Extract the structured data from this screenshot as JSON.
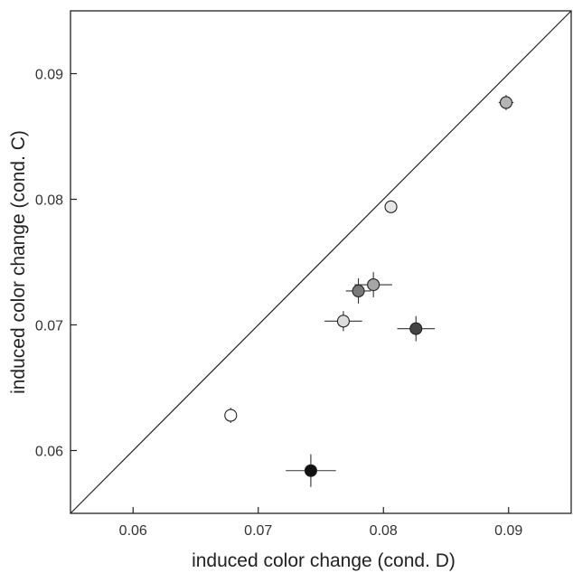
{
  "chart_data": {
    "type": "scatter",
    "title": "",
    "xlabel": "induced color change (cond. D)",
    "ylabel": "induced color change (cond. C)",
    "xlim": [
      0.055,
      0.095
    ],
    "ylim": [
      0.055,
      0.095
    ],
    "x_ticks": [
      0.06,
      0.07,
      0.08,
      0.09
    ],
    "y_ticks": [
      0.06,
      0.07,
      0.08,
      0.09
    ],
    "x_tick_labels": [
      "0.06",
      "0.07",
      "0.08",
      "0.09"
    ],
    "y_tick_labels": [
      "0.06",
      "0.07",
      "0.08",
      "0.09"
    ],
    "reference_line": {
      "from": [
        0.055,
        0.055
      ],
      "to": [
        0.095,
        0.095
      ]
    },
    "grid": false,
    "points": [
      {
        "x": 0.0678,
        "y": 0.0628,
        "xerr": 0.0002,
        "yerr": 0.0006,
        "fill": "#ffffff"
      },
      {
        "x": 0.0742,
        "y": 0.0584,
        "xerr": 0.002,
        "yerr": 0.0013,
        "fill": "#111111"
      },
      {
        "x": 0.0768,
        "y": 0.0703,
        "xerr": 0.0015,
        "yerr": 0.0008,
        "fill": "#dcdcdc"
      },
      {
        "x": 0.078,
        "y": 0.0727,
        "xerr": 0.001,
        "yerr": 0.001,
        "fill": "#7a7a7a"
      },
      {
        "x": 0.0792,
        "y": 0.0732,
        "xerr": 0.0015,
        "yerr": 0.001,
        "fill": "#a5a5a5"
      },
      {
        "x": 0.0806,
        "y": 0.0794,
        "xerr": 0.0002,
        "yerr": 0.0004,
        "fill": "#e6e6e6"
      },
      {
        "x": 0.0826,
        "y": 0.0697,
        "xerr": 0.0015,
        "yerr": 0.001,
        "fill": "#444444"
      },
      {
        "x": 0.0898,
        "y": 0.0877,
        "xerr": 0.0006,
        "yerr": 0.0006,
        "fill": "#b4b4b4"
      }
    ]
  }
}
